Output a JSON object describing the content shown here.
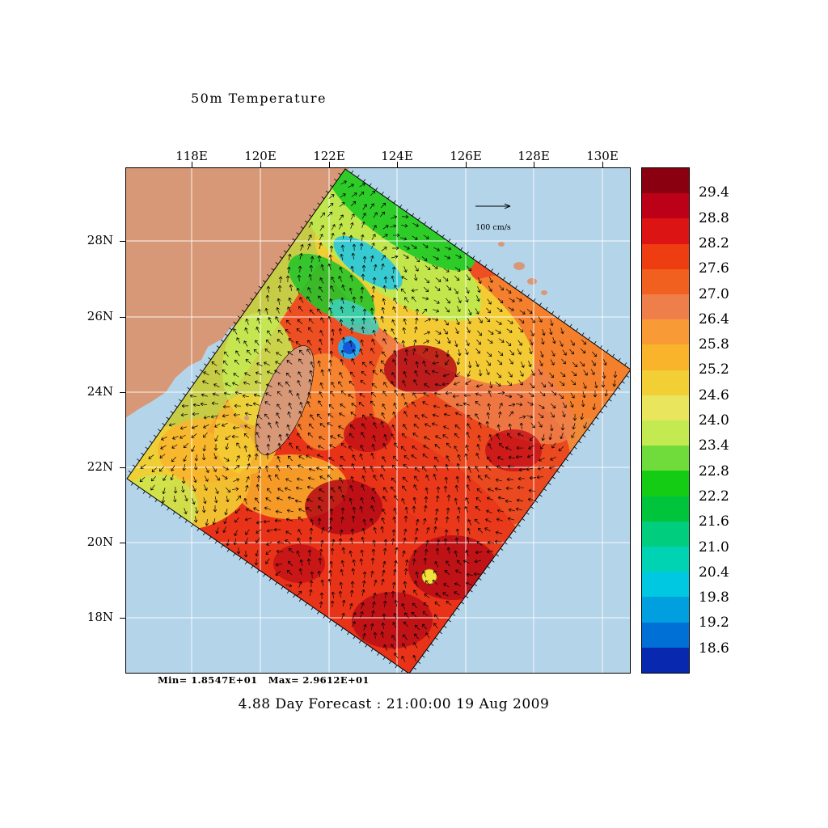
{
  "title": "50m Temperature",
  "footer": "4.88 Day Forecast : 21:00:00  19 Aug 2009",
  "stats": "Min= 1.8547E+01   Max= 2.9612E+01",
  "scale_arrow_label": "100 cm/s",
  "axes": {
    "lon_labels": [
      "118E",
      "120E",
      "122E",
      "124E",
      "126E",
      "128E",
      "130E"
    ],
    "lat_labels": [
      "28N",
      "26N",
      "24N",
      "22N",
      "20N",
      "18N"
    ]
  },
  "colorbar": {
    "tick_labels": [
      "29.4",
      "28.8",
      "28.2",
      "27.6",
      "27.0",
      "26.4",
      "25.8",
      "25.2",
      "24.6",
      "24.0",
      "23.4",
      "22.8",
      "22.2",
      "21.6",
      "21.0",
      "20.4",
      "19.8",
      "19.2",
      "18.6"
    ],
    "colors": [
      "#8b0010",
      "#bb0018",
      "#dd1414",
      "#ef3d12",
      "#f2601f",
      "#ef7f4a",
      "#f89a35",
      "#f9b42c",
      "#f2cf34",
      "#e9e65e",
      "#c4ea52",
      "#6fdc3c",
      "#14cc14",
      "#00c53c",
      "#00cd7d",
      "#00d2b4",
      "#00c8e0",
      "#009fe0",
      "#0070d6",
      "#0828b0"
    ]
  },
  "map_colors": {
    "sea": "#b4d4ea",
    "land": "#d79878",
    "grid": "#ffffff"
  },
  "chart_data": {
    "type": "heatmap",
    "title": "50m Temperature",
    "x_tick_labels": [
      "118E",
      "120E",
      "122E",
      "124E",
      "126E",
      "128E",
      "130E"
    ],
    "y_tick_labels": [
      "28N",
      "26N",
      "24N",
      "22N",
      "20N",
      "18N"
    ],
    "colorbar_levels": [
      29.4,
      28.8,
      28.2,
      27.6,
      27.0,
      26.4,
      25.8,
      25.2,
      24.6,
      24.0,
      23.4,
      22.8,
      22.2,
      21.6,
      21.0,
      20.4,
      19.8,
      19.2,
      18.6
    ],
    "level_interval": 0.6,
    "field_min": 18.547,
    "field_max": 29.612,
    "min_label": "Min= 1.8547E+01",
    "max_label": "Max= 2.9612E+01",
    "vector_reference": "100 cm/s",
    "annotation": "4.88 Day Forecast : 21:00:00  19 Aug 2009",
    "legend_position": "right",
    "grid": true,
    "description": "Rotated ocean-model domain around Taiwan and the western Pacific. Warm water (27-29.6, orange to dark red) covers most of the domain south and east of Taiwan with eddy-like dark-red patches; a cooler band (19-26, yellow/green/cyan with a blue minimum near 18.5) lies northeast of Taiwan; black current vectors overlaid, reference arrow 100 cm/s."
  }
}
